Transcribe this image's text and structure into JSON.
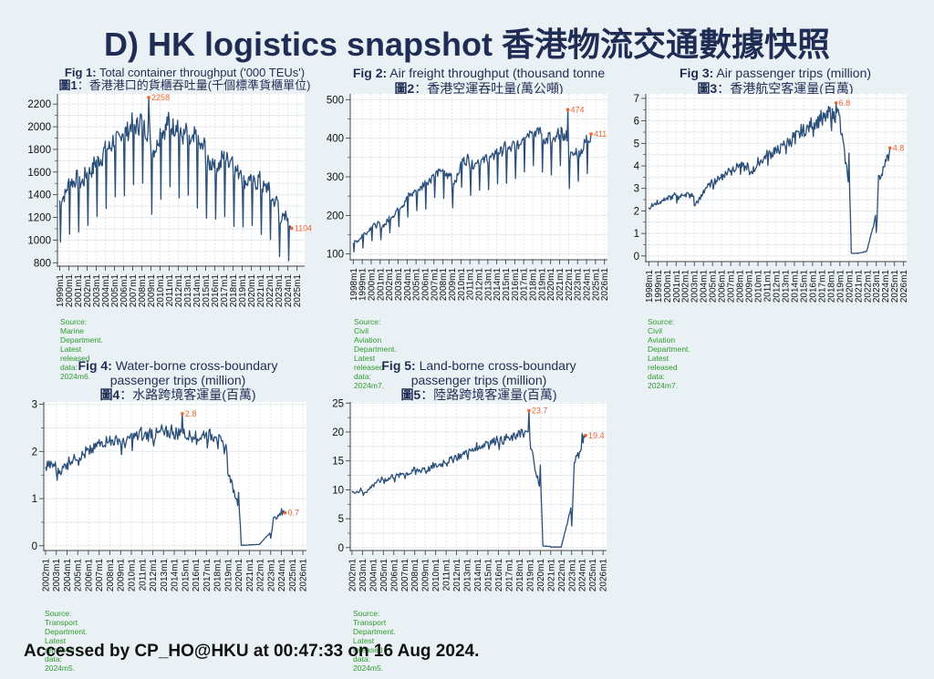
{
  "page": {
    "title": "D) HK logistics snapshot  香港物流交通數據快照",
    "footer": "Accessed by CP_HO@HKU at 00:47:33 on 16 Aug 2024."
  },
  "colors": {
    "background": "#eaf1f4",
    "title": "#1f2d55",
    "line": "#2a4f7a",
    "annotation": "#f2622e",
    "source": "#2e9a2e",
    "plot_bg": "#ffffff"
  },
  "figures": [
    {
      "id": "fig1",
      "title_bold": "Fig 1:",
      "title_rest": " Total container throughput ('000 TEUs')",
      "subtitle_bold": "圖1",
      "subtitle_rest": "：香港港口的貨櫃吞吐量(千個標準貨櫃單位)",
      "source": "Source: Marine Department.",
      "latest": "Latest released data: 2024m6."
    },
    {
      "id": "fig2",
      "title_bold": "Fig 2:",
      "title_rest": " Air freight throughput (thousand tonne",
      "subtitle_bold": "圖2",
      "subtitle_rest": "：香港空運吞吐量(萬公噸)",
      "source": "Source: Civil Aviation Department.",
      "latest": "Latest released data: 2024m7."
    },
    {
      "id": "fig3",
      "title_bold": "Fig 3:",
      "title_rest": " Air passenger trips (million)",
      "subtitle_bold": "圖3",
      "subtitle_rest": "：香港航空客運量(百萬)",
      "source": "Source: Civil Aviation Department.",
      "latest": "Latest released data: 2024m7."
    },
    {
      "id": "fig4",
      "title_bold": "Fig 4:",
      "title_rest": " Water-borne cross-boundary",
      "title_line2": "passenger trips (million)",
      "subtitle_bold": "圖4",
      "subtitle_rest": "：水路跨境客運量(百萬)",
      "source": "Source: Transport Department.",
      "latest": "Latest released data: 2024m5."
    },
    {
      "id": "fig5",
      "title_bold": "Fig 5:",
      "title_rest": " Land-borne cross-boundary",
      "title_line2": "passenger trips (million)",
      "subtitle_bold": "圖5",
      "subtitle_rest": "：陸路跨境客運量(百萬)",
      "source": "Source: Transport Department.",
      "latest": "Latest released data: 2024m5."
    }
  ],
  "chart_data": [
    {
      "type": "line",
      "title": "Fig 1: Total container throughput ('000 TEUs') 圖1：香港港口的貨櫃吞吐量(千個標準貨櫃單位)",
      "xlabel": "",
      "ylabel": "",
      "frequency": "monthly",
      "x_ticks": [
        "1999m1",
        "2000m1",
        "2001m1",
        "2002m1",
        "2003m1",
        "2004m1",
        "2005m1",
        "2006m1",
        "2007m1",
        "2008m1",
        "2009m1",
        "2010m1",
        "2011m1",
        "2012m1",
        "2013m1",
        "2014m1",
        "2015m1",
        "2016m1",
        "2017m1",
        "2018m1",
        "2019m1",
        "2020m1",
        "2021m1",
        "2022m1",
        "2023m1",
        "2024m1",
        "2025m1"
      ],
      "y_ticks": [
        800,
        1000,
        1200,
        1400,
        1600,
        1800,
        2000,
        2200
      ],
      "ylim": [
        770,
        2290
      ],
      "x_range": [
        "1998m10",
        "2025m11"
      ],
      "series": [
        {
          "name": "Container throughput",
          "start": "1999m1",
          "end": "2024m6",
          "annual_level": {
            "1999": 1350,
            "2000": 1520,
            "2001": 1490,
            "2002": 1590,
            "2003": 1690,
            "2004": 1800,
            "2005": 1870,
            "2006": 1950,
            "2007": 2000,
            "2008": 2030,
            "2009": 1770,
            "2010": 1960,
            "2011": 2020,
            "2012": 1930,
            "2013": 1860,
            "2014": 1860,
            "2015": 1680,
            "2016": 1640,
            "2017": 1730,
            "2018": 1630,
            "2019": 1520,
            "2020": 1510,
            "2021": 1480,
            "2022": 1390,
            "2023": 1200,
            "2024": 1150
          },
          "feb_dip": 0.72,
          "noise": 0.045
        }
      ],
      "annotations": [
        {
          "label": "2258",
          "x": "2008m10",
          "y": 2258,
          "type": "max"
        },
        {
          "label": "1104",
          "x": "2024m6",
          "y": 1104,
          "type": "last"
        }
      ],
      "grid": true
    },
    {
      "type": "line",
      "title": "Fig 2: Air freight throughput (thousand tonne 圖2：香港空運吞吐量(萬公噸)",
      "frequency": "monthly",
      "x_ticks": [
        "1998m1",
        "1999m1",
        "2000m1",
        "2001m1",
        "2002m1",
        "2003m1",
        "2004m1",
        "2005m1",
        "2006m1",
        "2007m1",
        "2008m1",
        "2009m1",
        "2010m1",
        "2011m1",
        "2012m1",
        "2013m1",
        "2014m1",
        "2015m1",
        "2016m1",
        "2017m1",
        "2018m1",
        "2019m1",
        "2020m1",
        "2021m1",
        "2022m1",
        "2023m1",
        "2024m1",
        "2025m1",
        "2026m1"
      ],
      "y_ticks": [
        100,
        200,
        300,
        400,
        500
      ],
      "ylim": [
        85,
        515
      ],
      "x_range": [
        "1997m9",
        "2026m5"
      ],
      "series": [
        {
          "name": "Air freight",
          "start": "1998m1",
          "end": "2024m7",
          "annual_level": {
            "1998": 130,
            "1999": 150,
            "2000": 175,
            "2001": 170,
            "2002": 195,
            "2003": 220,
            "2004": 250,
            "2005": 265,
            "2006": 285,
            "2007": 310,
            "2008": 310,
            "2009": 280,
            "2010": 345,
            "2011": 330,
            "2012": 340,
            "2013": 345,
            "2014": 365,
            "2015": 370,
            "2016": 375,
            "2017": 410,
            "2018": 420,
            "2019": 400,
            "2020": 385,
            "2021": 420,
            "2022": 355,
            "2023": 360,
            "2024": 400
          },
          "feb_dip": 0.78,
          "noise": 0.035
        }
      ],
      "annotations": [
        {
          "label": "474",
          "x": "2021m12",
          "y": 474,
          "type": "max"
        },
        {
          "label": "411",
          "x": "2024m7",
          "y": 411,
          "type": "last"
        }
      ],
      "grid": true
    },
    {
      "type": "line",
      "title": "Fig 3: Air passenger trips (million) 圖3：香港航空客運量(百萬)",
      "frequency": "monthly",
      "x_ticks": [
        "1998m1",
        "1999m1",
        "2000m1",
        "2001m1",
        "2002m1",
        "2003m1",
        "2004m1",
        "2005m1",
        "2006m1",
        "2007m1",
        "2008m1",
        "2009m1",
        "2010m1",
        "2011m1",
        "2012m1",
        "2013m1",
        "2014m1",
        "2015m1",
        "2016m1",
        "2017m1",
        "2018m1",
        "2019m1",
        "2020m1",
        "2021m1",
        "2022m1",
        "2023m1",
        "2024m1",
        "2025m1",
        "2026m1"
      ],
      "y_ticks": [
        0,
        1,
        2,
        3,
        4,
        5,
        6,
        7
      ],
      "ylim": [
        -0.25,
        7.2
      ],
      "x_range": [
        "1997m9",
        "2026m5"
      ],
      "series": [
        {
          "name": "Air passengers",
          "start": "1998m1",
          "end": "2024m7",
          "annual_level": {
            "1998": 2.2,
            "1999": 2.4,
            "2000": 2.6,
            "2001": 2.6,
            "2002": 2.8,
            "2003": 2.3,
            "2004": 3.0,
            "2005": 3.3,
            "2006": 3.6,
            "2007": 3.9,
            "2008": 4.0,
            "2009": 3.7,
            "2010": 4.2,
            "2011": 4.5,
            "2012": 4.7,
            "2013": 5.0,
            "2014": 5.3,
            "2015": 5.6,
            "2016": 5.9,
            "2017": 6.1,
            "2018": 6.3,
            "2019": 6.0,
            "2020": 0.12,
            "2021": 0.12,
            "2022": 0.3,
            "2023": 3.3,
            "2024": 4.4
          },
          "feb_dip": 0.93,
          "noise": 0.05
        }
      ],
      "annotations": [
        {
          "label": "6.8",
          "x": "2018m8",
          "y": 6.8,
          "type": "max"
        },
        {
          "label": "4.8",
          "x": "2024m7",
          "y": 4.8,
          "type": "last"
        }
      ],
      "grid": true
    },
    {
      "type": "line",
      "title": "Fig 4: Water-borne cross-boundary passenger trips (million) 圖4：水路跨境客運量(百萬)",
      "frequency": "monthly",
      "x_ticks": [
        "2002m1",
        "2003m1",
        "2004m1",
        "2005m1",
        "2006m1",
        "2007m1",
        "2008m1",
        "2009m1",
        "2010m1",
        "2011m1",
        "2012m1",
        "2013m1",
        "2014m1",
        "2015m1",
        "2016m1",
        "2017m1",
        "2018m1",
        "2019m1",
        "2020m1",
        "2021m1",
        "2022m1",
        "2023m1",
        "2024m1",
        "2025m1",
        "2026m1"
      ],
      "y_ticks": [
        0,
        1,
        2,
        3
      ],
      "ylim": [
        -0.1,
        3.05
      ],
      "x_range": [
        "2001m11",
        "2026m5"
      ],
      "series": [
        {
          "name": "Water-borne passengers",
          "start": "2002m1",
          "end": "2024m5",
          "annual_level": {
            "2002": 1.75,
            "2003": 1.55,
            "2004": 1.8,
            "2005": 1.9,
            "2006": 2.0,
            "2007": 2.2,
            "2008": 2.25,
            "2009": 2.15,
            "2010": 2.3,
            "2011": 2.35,
            "2012": 2.35,
            "2013": 2.4,
            "2014": 2.4,
            "2015": 2.35,
            "2016": 2.3,
            "2017": 2.35,
            "2018": 2.3,
            "2019": 1.6,
            "2020": 0.01,
            "2021": 0.02,
            "2022": 0.04,
            "2023": 0.55,
            "2024": 0.75
          },
          "feb_dip": 0.93,
          "noise": 0.06
        }
      ],
      "annotations": [
        {
          "label": "2.8",
          "x": "2014m10",
          "y": 2.8,
          "type": "max"
        },
        {
          "label": "0.7",
          "x": "2024m5",
          "y": 0.7,
          "type": "last"
        }
      ],
      "grid": true
    },
    {
      "type": "line",
      "title": "Fig 5: Land-borne cross-boundary passenger trips (million) 圖5：陸路跨境客運量(百萬)",
      "frequency": "monthly",
      "x_ticks": [
        "2002m1",
        "2003m1",
        "2004m1",
        "2005m1",
        "2006m1",
        "2007m1",
        "2008m1",
        "2009m1",
        "2010m1",
        "2011m1",
        "2012m1",
        "2013m1",
        "2014m1",
        "2015m1",
        "2016m1",
        "2017m1",
        "2018m1",
        "2019m1",
        "2020m1",
        "2021m1",
        "2022m1",
        "2023m1",
        "2024m1",
        "2025m1",
        "2026m1"
      ],
      "y_ticks": [
        0,
        5,
        10,
        15,
        20,
        25
      ],
      "ylim": [
        -0.5,
        25.2
      ],
      "x_range": [
        "2001m11",
        "2026m5"
      ],
      "series": [
        {
          "name": "Land-borne passengers",
          "start": "2002m1",
          "end": "2024m5",
          "annual_level": {
            "2002": 9.8,
            "2003": 9.5,
            "2004": 11.2,
            "2005": 11.8,
            "2006": 12.3,
            "2007": 12.8,
            "2008": 13.3,
            "2009": 13.5,
            "2010": 14.2,
            "2011": 15.0,
            "2012": 15.8,
            "2013": 16.5,
            "2014": 17.5,
            "2015": 18.3,
            "2016": 18.5,
            "2017": 18.8,
            "2018": 20.0,
            "2019": 18.5,
            "2020": 0.3,
            "2021": 0.1,
            "2022": 0.1,
            "2023": 14.5,
            "2024": 19.3
          },
          "feb_dip": 0.95,
          "noise": 0.04
        }
      ],
      "annotations": [
        {
          "label": "23.7",
          "x": "2018m12",
          "y": 23.7,
          "type": "max"
        },
        {
          "label": "19.4",
          "x": "2024m5",
          "y": 19.4,
          "type": "last"
        }
      ],
      "grid": true
    }
  ]
}
